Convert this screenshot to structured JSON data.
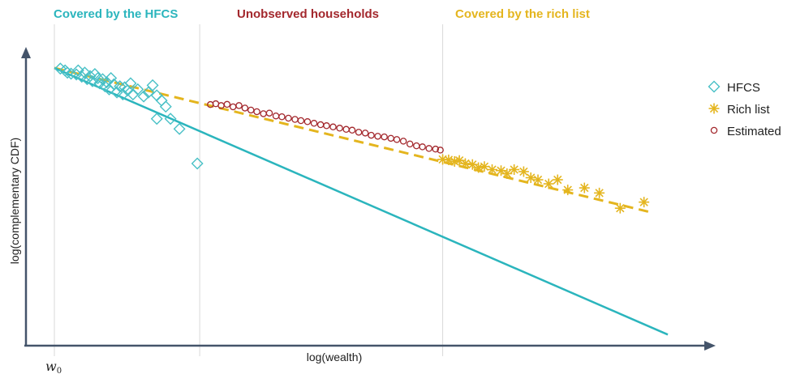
{
  "chart_data": {
    "type": "scatter",
    "xlabel": "log(wealth)",
    "ylabel": "log(complementary CDF)",
    "x_origin_label": "w",
    "x_origin_subscript": "0",
    "regions": [
      {
        "label": "Covered by the HFCS",
        "color": "#2bb5bd"
      },
      {
        "label": "Unobserved households",
        "color": "#a3282d"
      },
      {
        "label": "Covered by the rich list",
        "color": "#e4b51e"
      }
    ],
    "region_boundaries": [
      0.244,
      0.652
    ],
    "xlim": [
      0,
      1.08
    ],
    "ylim": [
      -1.5,
      0.05
    ],
    "series": [
      {
        "name": "HFCS",
        "marker": "diamond",
        "color": "#48c0c6",
        "points": [
          [
            0.01,
            -0.003
          ],
          [
            0.018,
            -0.012
          ],
          [
            0.022,
            -0.023
          ],
          [
            0.028,
            -0.028
          ],
          [
            0.037,
            -0.032
          ],
          [
            0.04,
            -0.012
          ],
          [
            0.046,
            -0.043
          ],
          [
            0.051,
            -0.023
          ],
          [
            0.055,
            -0.055
          ],
          [
            0.06,
            -0.04
          ],
          [
            0.064,
            -0.065
          ],
          [
            0.068,
            -0.03
          ],
          [
            0.073,
            -0.05
          ],
          [
            0.076,
            -0.075
          ],
          [
            0.081,
            -0.055
          ],
          [
            0.085,
            -0.09
          ],
          [
            0.088,
            -0.07
          ],
          [
            0.092,
            -0.105
          ],
          [
            0.095,
            -0.05
          ],
          [
            0.1,
            -0.08
          ],
          [
            0.105,
            -0.12
          ],
          [
            0.11,
            -0.09
          ],
          [
            0.115,
            -0.13
          ],
          [
            0.118,
            -0.095
          ],
          [
            0.123,
            -0.11
          ],
          [
            0.128,
            -0.075
          ],
          [
            0.132,
            -0.13
          ],
          [
            0.14,
            -0.105
          ],
          [
            0.15,
            -0.14
          ],
          [
            0.158,
            -0.12
          ],
          [
            0.165,
            -0.085
          ],
          [
            0.172,
            -0.135
          ],
          [
            0.18,
            -0.16
          ],
          [
            0.187,
            -0.19
          ],
          [
            0.172,
            -0.25
          ],
          [
            0.195,
            -0.25
          ],
          [
            0.21,
            -0.3
          ],
          [
            0.24,
            -0.47
          ]
        ]
      },
      {
        "name": "Rich list",
        "marker": "star",
        "color": "#e4b51e",
        "points": [
          [
            0.652,
            -0.45
          ],
          [
            0.662,
            -0.452
          ],
          [
            0.672,
            -0.46
          ],
          [
            0.68,
            -0.455
          ],
          [
            0.69,
            -0.47
          ],
          [
            0.702,
            -0.475
          ],
          [
            0.712,
            -0.49
          ],
          [
            0.722,
            -0.485
          ],
          [
            0.735,
            -0.5
          ],
          [
            0.75,
            -0.505
          ],
          [
            0.76,
            -0.52
          ],
          [
            0.772,
            -0.5
          ],
          [
            0.788,
            -0.51
          ],
          [
            0.8,
            -0.54
          ],
          [
            0.812,
            -0.55
          ],
          [
            0.83,
            -0.57
          ],
          [
            0.845,
            -0.55
          ],
          [
            0.862,
            -0.6
          ],
          [
            0.89,
            -0.59
          ],
          [
            0.915,
            -0.615
          ],
          [
            0.95,
            -0.69
          ],
          [
            0.99,
            -0.66
          ]
        ]
      },
      {
        "name": "Estimated",
        "marker": "circle",
        "color": "#a3282d",
        "points": [
          [
            0.262,
            -0.18
          ],
          [
            0.271,
            -0.176
          ],
          [
            0.28,
            -0.185
          ],
          [
            0.29,
            -0.179
          ],
          [
            0.3,
            -0.191
          ],
          [
            0.31,
            -0.185
          ],
          [
            0.32,
            -0.197
          ],
          [
            0.33,
            -0.207
          ],
          [
            0.34,
            -0.215
          ],
          [
            0.351,
            -0.225
          ],
          [
            0.361,
            -0.222
          ],
          [
            0.372,
            -0.236
          ],
          [
            0.382,
            -0.24
          ],
          [
            0.393,
            -0.247
          ],
          [
            0.404,
            -0.253
          ],
          [
            0.414,
            -0.259
          ],
          [
            0.425,
            -0.264
          ],
          [
            0.436,
            -0.272
          ],
          [
            0.447,
            -0.279
          ],
          [
            0.457,
            -0.284
          ],
          [
            0.468,
            -0.29
          ],
          [
            0.479,
            -0.296
          ],
          [
            0.49,
            -0.302
          ],
          [
            0.5,
            -0.306
          ],
          [
            0.511,
            -0.316
          ],
          [
            0.522,
            -0.32
          ],
          [
            0.532,
            -0.331
          ],
          [
            0.543,
            -0.336
          ],
          [
            0.554,
            -0.339
          ],
          [
            0.565,
            -0.346
          ],
          [
            0.575,
            -0.352
          ],
          [
            0.586,
            -0.36
          ],
          [
            0.597,
            -0.374
          ],
          [
            0.608,
            -0.383
          ],
          [
            0.618,
            -0.388
          ],
          [
            0.629,
            -0.396
          ],
          [
            0.64,
            -0.399
          ],
          [
            0.648,
            -0.404
          ]
        ]
      }
    ],
    "fit_lines": [
      {
        "style": "dashed",
        "color": "#e4b51e",
        "from": [
          0.0,
          0.0
        ],
        "to": [
          1.0,
          -0.709
        ]
      },
      {
        "style": "solid",
        "color": "#2bb5bd",
        "from": [
          0.0,
          0.0
        ],
        "to": [
          1.03,
          -1.312
        ]
      }
    ],
    "legend": {
      "position": "right",
      "entries": [
        "HFCS",
        "Rich list",
        "Estimated"
      ]
    },
    "grid": false
  }
}
